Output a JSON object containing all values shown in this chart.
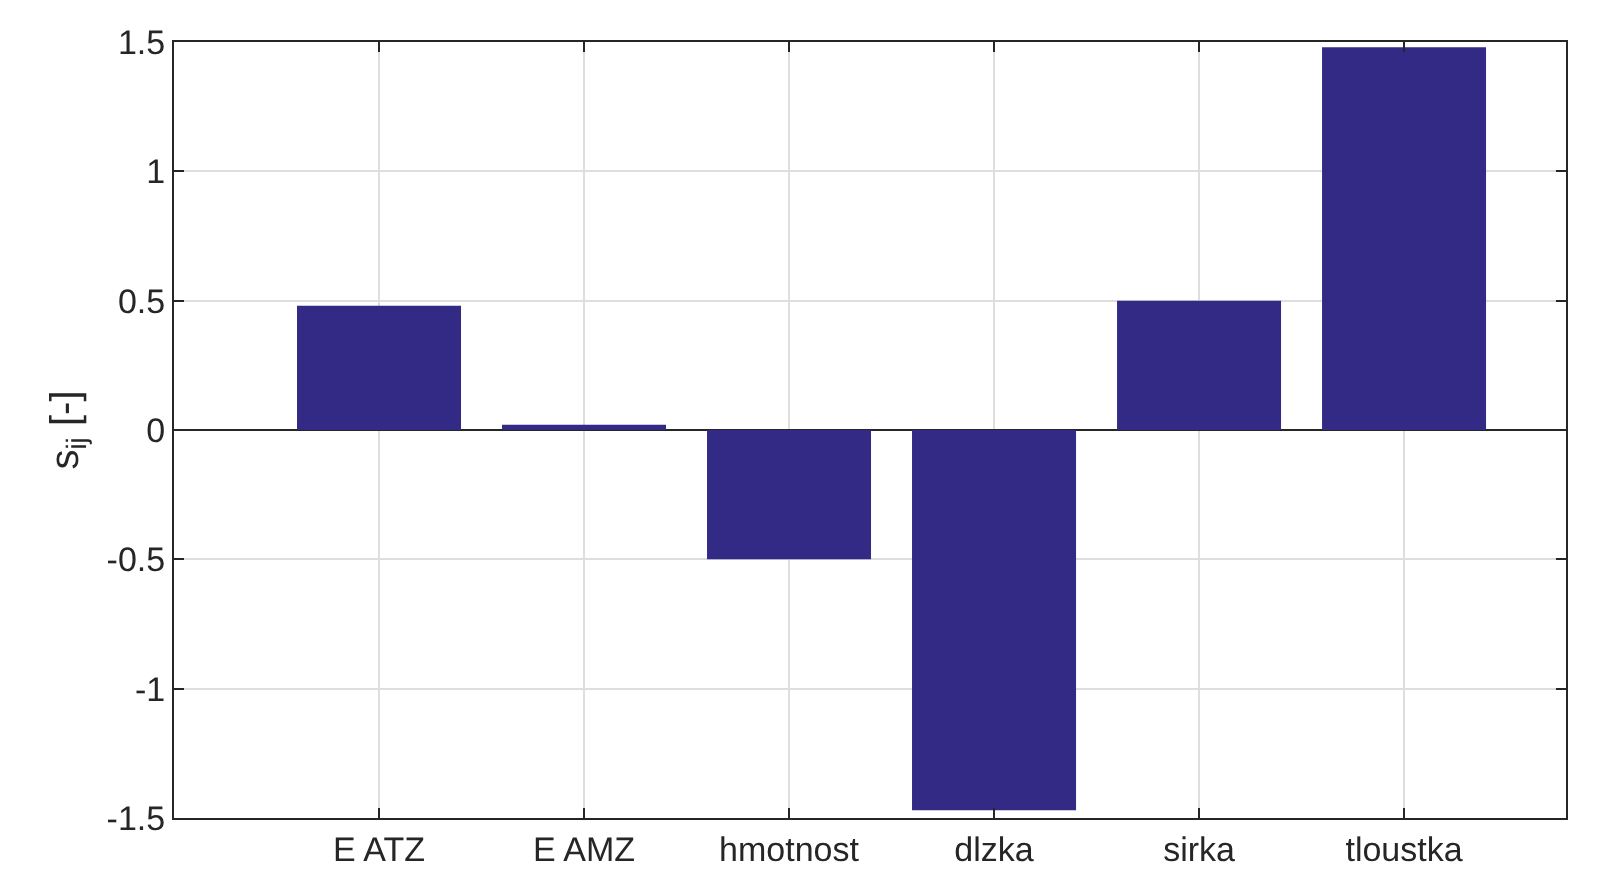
{
  "chart_data": {
    "type": "bar",
    "ylabel": "s$_{ij}$ [-]",
    "categories": [
      "E ATZ",
      "E AMZ",
      "hmotnost",
      "dlzka",
      "sirka",
      "tloustka"
    ],
    "values": [
      0.48,
      0.02,
      -0.5,
      -1.47,
      0.5,
      1.48
    ],
    "color": "#332a85",
    "ylim": [
      -1.5,
      1.5
    ],
    "yticks": [
      -1.5,
      -1,
      -0.5,
      0,
      0.5,
      1,
      1.5
    ],
    "grid": true
  }
}
